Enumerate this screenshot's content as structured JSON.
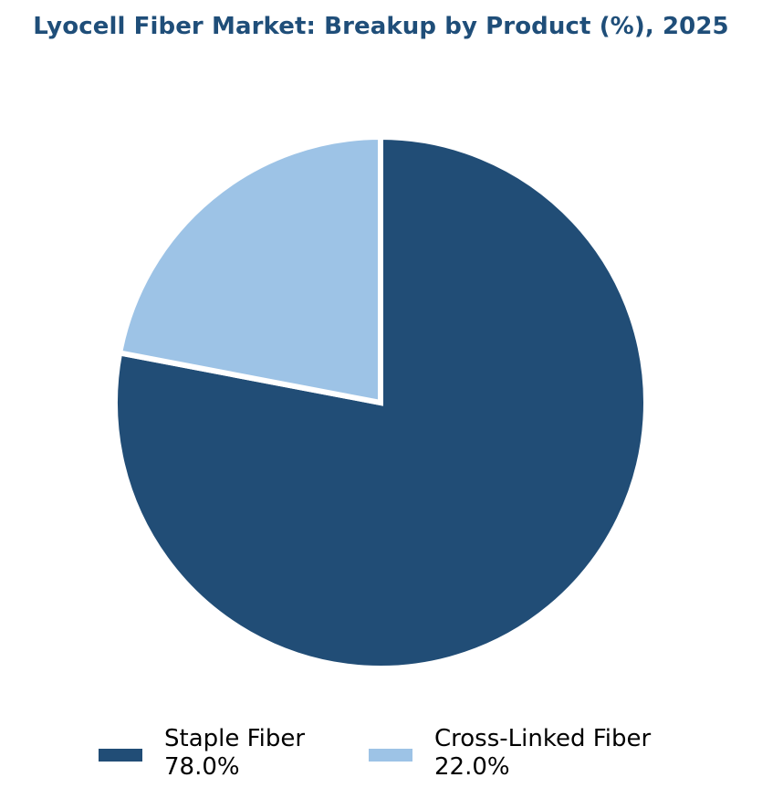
{
  "chart_data": {
    "type": "pie",
    "title": "Lyocell Fiber Market: Breakup by Product (%), 2025",
    "start_angle_deg": 90,
    "direction": "clockwise",
    "legend_position": "bottom",
    "slices": [
      {
        "label": "Staple Fiber",
        "value": 78.0,
        "value_text": "78.0%",
        "color": "#214d76"
      },
      {
        "label": "Cross-Linked Fiber",
        "value": 22.0,
        "value_text": "22.0%",
        "color": "#9dc3e6"
      }
    ],
    "wedge_edge_color": "#ffffff",
    "title_color": "#1f4e79"
  }
}
